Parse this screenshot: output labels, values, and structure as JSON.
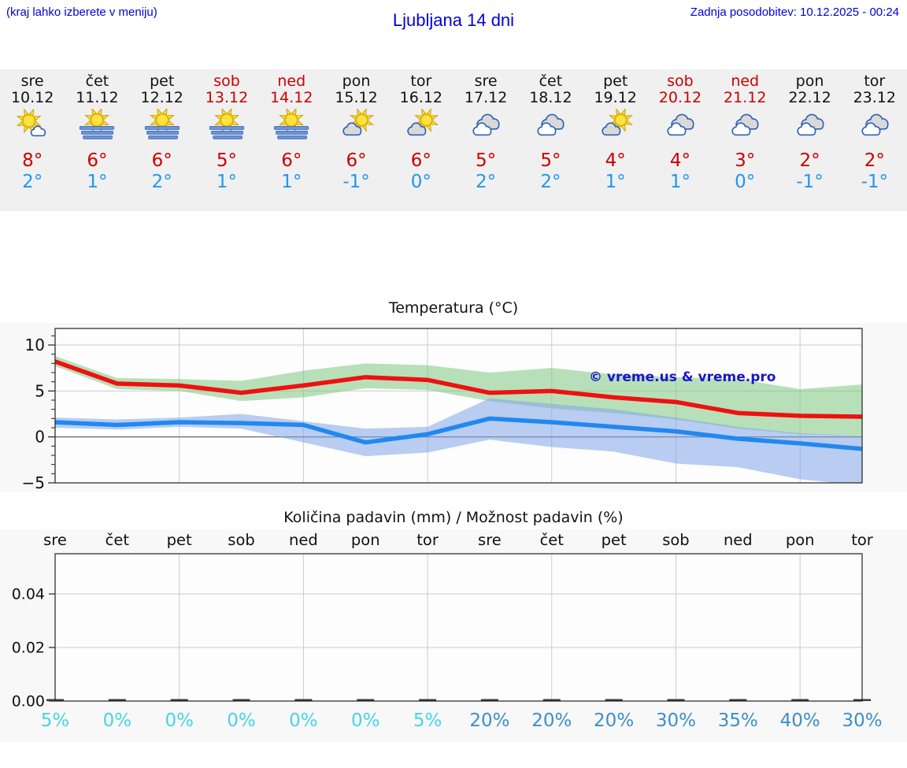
{
  "header": {
    "note": "(kraj lahko izberete v meniju)",
    "title": "Ljubljana 14 dni",
    "last_update": "Zadnja posodobitev: 10.12.2025 - 00:24"
  },
  "colors": {
    "header_blue": "#0000dd",
    "weekend_red": "#cc0000",
    "temp_high_text": "#cc0000",
    "temp_low_text": "#2196f3",
    "line_high": "#ee1111",
    "line_low": "#2288ee",
    "band_high_green": "#7fc97f",
    "band_low_blue": "#7fa6e8",
    "watermark_blue": "#1a15cc",
    "pct_cyan": "#45d5e6",
    "pct_blue": "#3d8fc9",
    "strip_bg": "#f0f0f0",
    "figure_bg": "#f8f8f8"
  },
  "days": [
    {
      "name": "sre",
      "date": "10.12",
      "icon": "sun-cloud",
      "high": "8°",
      "low": "2°",
      "weekend": false
    },
    {
      "name": "čet",
      "date": "11.12",
      "icon": "sun-fog",
      "high": "6°",
      "low": "1°",
      "weekend": false
    },
    {
      "name": "pet",
      "date": "12.12",
      "icon": "sun-fog",
      "high": "6°",
      "low": "2°",
      "weekend": false
    },
    {
      "name": "sob",
      "date": "13.12",
      "icon": "sun-fog",
      "high": "5°",
      "low": "1°",
      "weekend": true
    },
    {
      "name": "ned",
      "date": "14.12",
      "icon": "sun-fog",
      "high": "6°",
      "low": "1°",
      "weekend": true
    },
    {
      "name": "pon",
      "date": "15.12",
      "icon": "partly-cloudy",
      "high": "6°",
      "low": "-1°",
      "weekend": false
    },
    {
      "name": "tor",
      "date": "16.12",
      "icon": "partly-cloudy",
      "high": "6°",
      "low": "0°",
      "weekend": false
    },
    {
      "name": "sre",
      "date": "17.12",
      "icon": "cloudy",
      "high": "5°",
      "low": "2°",
      "weekend": false
    },
    {
      "name": "čet",
      "date": "18.12",
      "icon": "cloudy",
      "high": "5°",
      "low": "2°",
      "weekend": false
    },
    {
      "name": "pet",
      "date": "19.12",
      "icon": "partly-cloudy",
      "high": "4°",
      "low": "1°",
      "weekend": false
    },
    {
      "name": "sob",
      "date": "20.12",
      "icon": "cloudy",
      "high": "4°",
      "low": "1°",
      "weekend": true
    },
    {
      "name": "ned",
      "date": "21.12",
      "icon": "cloudy",
      "high": "3°",
      "low": "0°",
      "weekend": true
    },
    {
      "name": "pon",
      "date": "22.12",
      "icon": "cloudy",
      "high": "2°",
      "low": "-1°",
      "weekend": false
    },
    {
      "name": "tor",
      "date": "23.12",
      "icon": "cloudy",
      "high": "2°",
      "low": "-1°",
      "weekend": false
    }
  ],
  "chart_data": [
    {
      "type": "line",
      "title": "Temperatura (°C)",
      "watermark": "© vreme.us & vreme.pro",
      "x_labels": [
        "sre",
        "čet",
        "pet",
        "sob",
        "ned",
        "pon",
        "tor",
        "sre",
        "čet",
        "pet",
        "sob",
        "ned",
        "pon",
        "tor"
      ],
      "ylim": [
        -5,
        11.8
      ],
      "yticks": [
        10,
        5,
        0,
        -5
      ],
      "ytick_labels": [
        "10",
        "5",
        "0",
        "−5"
      ],
      "grid_vertical_at": [
        2,
        4,
        6,
        8,
        10,
        12
      ],
      "series": [
        {
          "name": "max temperature",
          "color": "#ee1111",
          "values": [
            8.2,
            5.8,
            5.6,
            4.8,
            5.6,
            6.5,
            6.2,
            4.8,
            5.0,
            4.3,
            3.8,
            2.6,
            2.3,
            2.2
          ]
        },
        {
          "name": "min temperature",
          "color": "#2288ee",
          "values": [
            1.6,
            1.3,
            1.6,
            1.5,
            1.3,
            -0.6,
            0.3,
            2.0,
            1.6,
            1.1,
            0.6,
            -0.2,
            -0.7,
            -1.3
          ]
        }
      ],
      "bands": [
        {
          "name": "max temperature range",
          "color": "#7fc97f",
          "opacity": 0.55,
          "upper": [
            8.8,
            6.4,
            6.3,
            6.1,
            7.2,
            8.0,
            7.8,
            7.0,
            7.5,
            6.8,
            6.5,
            6.3,
            5.2,
            5.7
          ],
          "lower": [
            7.7,
            5.2,
            5.0,
            3.9,
            4.3,
            5.3,
            5.1,
            3.9,
            3.1,
            2.6,
            1.9,
            0.9,
            0.3,
            0.1
          ]
        },
        {
          "name": "min temperature range",
          "color": "#7fa6e8",
          "opacity": 0.55,
          "upper": [
            2.1,
            1.9,
            2.1,
            2.5,
            1.7,
            0.9,
            1.1,
            4.2,
            3.6,
            3.0,
            2.1,
            1.1,
            0.4,
            0.1
          ],
          "lower": [
            1.0,
            0.8,
            1.1,
            0.9,
            -0.6,
            -2.1,
            -1.7,
            -0.3,
            -1.1,
            -1.6,
            -2.9,
            -3.3,
            -4.6,
            -5.3
          ]
        }
      ]
    },
    {
      "type": "bar",
      "title": "Količina padavin (mm) / Možnost padavin (%)",
      "x_labels": [
        "sre",
        "čet",
        "pet",
        "sob",
        "ned",
        "pon",
        "tor",
        "sre",
        "čet",
        "pet",
        "sob",
        "ned",
        "pon",
        "tor"
      ],
      "values": [
        0,
        0,
        0,
        0,
        0,
        0,
        0,
        0,
        0,
        0,
        0,
        0,
        0,
        0
      ],
      "ylim": [
        0,
        0.055
      ],
      "yticks": [
        0,
        0.02,
        0.04
      ],
      "ytick_labels": [
        "0.00",
        "0.02",
        "0.04"
      ],
      "grid_vertical_at": [
        2,
        4,
        6,
        8,
        10,
        12
      ],
      "probabilities": [
        "5%",
        "0%",
        "0%",
        "0%",
        "0%",
        "0%",
        "5%",
        "20%",
        "20%",
        "20%",
        "30%",
        "35%",
        "40%",
        "30%"
      ],
      "probability_colors": [
        "#45d5e6",
        "#45d5e6",
        "#45d5e6",
        "#45d5e6",
        "#45d5e6",
        "#45d5e6",
        "#45d5e6",
        "#3d8fc9",
        "#3d8fc9",
        "#3d8fc9",
        "#3d8fc9",
        "#3d8fc9",
        "#3d8fc9",
        "#3d8fc9"
      ]
    }
  ]
}
